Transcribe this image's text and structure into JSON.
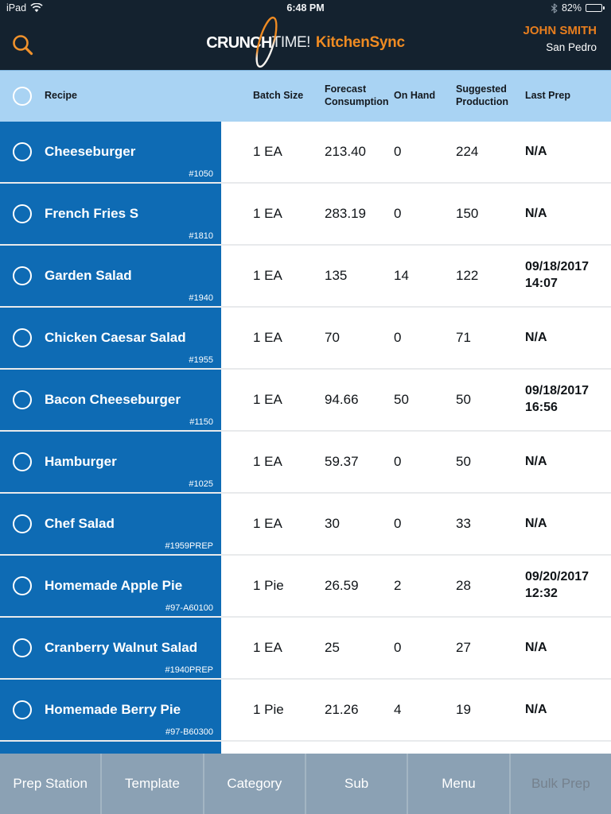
{
  "status_bar": {
    "device": "iPad",
    "time": "6:48 PM",
    "battery_percent": "82%",
    "battery_level": 0.82
  },
  "header": {
    "logo_part1": "CRUNCH",
    "logo_part2": "TIME!",
    "logo_part3": "KitchenSync",
    "user_name": "JOHN SMITH",
    "location": "San Pedro"
  },
  "colors": {
    "navy": "#14222F",
    "row_blue": "#0E6BB4",
    "header_light_blue": "#A9D3F3",
    "accent_orange": "#EF8B22",
    "toolbar_gray_blue": "#8BA1B4"
  },
  "table": {
    "columns": {
      "recipe": "Recipe",
      "batch_size": "Batch Size",
      "forecast": "Forecast Consumption",
      "on_hand": "On Hand",
      "suggested": "Suggested Production",
      "last_prep": "Last Prep"
    },
    "rows": [
      {
        "name": "Cheeseburger",
        "number": "#1050",
        "batch_size": "1 EA",
        "forecast": "213.40",
        "on_hand": "0",
        "suggested": "224",
        "last_prep": [
          "N/A"
        ]
      },
      {
        "name": "French Fries S",
        "number": "#1810",
        "batch_size": "1 EA",
        "forecast": "283.19",
        "on_hand": "0",
        "suggested": "150",
        "last_prep": [
          "N/A"
        ]
      },
      {
        "name": "Garden Salad",
        "number": "#1940",
        "batch_size": "1 EA",
        "forecast": "135",
        "on_hand": "14",
        "suggested": "122",
        "last_prep": [
          "09/18/2017",
          "14:07"
        ]
      },
      {
        "name": "Chicken Caesar Salad",
        "number": "#1955",
        "batch_size": "1 EA",
        "forecast": "70",
        "on_hand": "0",
        "suggested": "71",
        "last_prep": [
          "N/A"
        ]
      },
      {
        "name": "Bacon Cheeseburger",
        "number": "#1150",
        "batch_size": "1 EA",
        "forecast": "94.66",
        "on_hand": "50",
        "suggested": "50",
        "last_prep": [
          "09/18/2017",
          "16:56"
        ]
      },
      {
        "name": "Hamburger",
        "number": "#1025",
        "batch_size": "1 EA",
        "forecast": "59.37",
        "on_hand": "0",
        "suggested": "50",
        "last_prep": [
          "N/A"
        ]
      },
      {
        "name": "Chef Salad",
        "number": "#1959PREP",
        "batch_size": "1 EA",
        "forecast": "30",
        "on_hand": "0",
        "suggested": "33",
        "last_prep": [
          "N/A"
        ]
      },
      {
        "name": "Homemade Apple Pie",
        "number": "#97-A60100",
        "batch_size": "1 Pie",
        "forecast": "26.59",
        "on_hand": "2",
        "suggested": "28",
        "last_prep": [
          "09/20/2017",
          "12:32"
        ]
      },
      {
        "name": "Cranberry Walnut Salad",
        "number": "#1940PREP",
        "batch_size": "1 EA",
        "forecast": "25",
        "on_hand": "0",
        "suggested": "27",
        "last_prep": [
          "N/A"
        ]
      },
      {
        "name": "Homemade Berry Pie",
        "number": "#97-B60300",
        "batch_size": "1 Pie",
        "forecast": "21.26",
        "on_hand": "4",
        "suggested": "19",
        "last_prep": [
          "N/A"
        ]
      }
    ]
  },
  "toolbar": {
    "buttons": [
      {
        "label": "Prep Station",
        "enabled": true
      },
      {
        "label": "Template",
        "enabled": true
      },
      {
        "label": "Category",
        "enabled": true
      },
      {
        "label": "Sub",
        "enabled": true
      },
      {
        "label": "Menu",
        "enabled": true
      },
      {
        "label": "Bulk Prep",
        "enabled": false
      }
    ]
  }
}
